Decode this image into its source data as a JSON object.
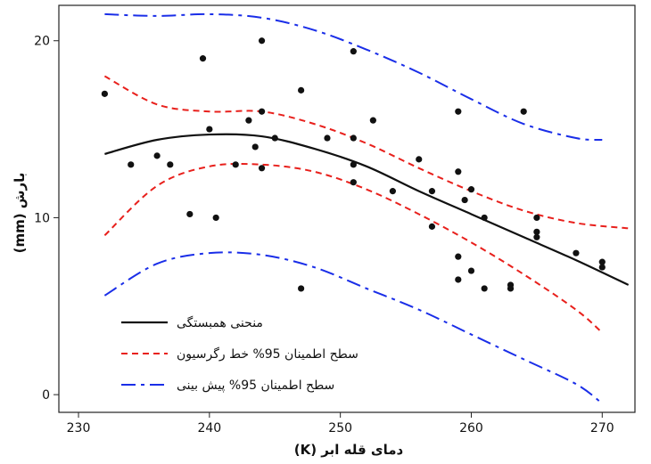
{
  "chart_data": {
    "type": "scatter",
    "xlabel": "دمای قله ابر (K)",
    "ylabel": "بارش (mm)",
    "xlim": [
      228.5,
      272.5
    ],
    "ylim": [
      -1.0,
      22.0
    ],
    "xticks": [
      230,
      240,
      250,
      260,
      270
    ],
    "yticks": [
      0,
      10,
      20
    ],
    "grid": false,
    "legend_position": "bottom-left",
    "points": [
      [
        232,
        17.0
      ],
      [
        234,
        13.0
      ],
      [
        236,
        13.5
      ],
      [
        237,
        13.0
      ],
      [
        238.5,
        10.2
      ],
      [
        239.5,
        19.0
      ],
      [
        240,
        15.0
      ],
      [
        240.5,
        10.0
      ],
      [
        242,
        13.0
      ],
      [
        243,
        15.5
      ],
      [
        243.5,
        14.0
      ],
      [
        244,
        20.0
      ],
      [
        244,
        16.0
      ],
      [
        244,
        12.8
      ],
      [
        245,
        14.5
      ],
      [
        247,
        17.2
      ],
      [
        247,
        6.0
      ],
      [
        249,
        14.5
      ],
      [
        251,
        19.4
      ],
      [
        251,
        14.5
      ],
      [
        251,
        13.0
      ],
      [
        251,
        12.0
      ],
      [
        252.5,
        15.5
      ],
      [
        254,
        11.5
      ],
      [
        256,
        13.3
      ],
      [
        257,
        11.5
      ],
      [
        257,
        9.5
      ],
      [
        259,
        16.0
      ],
      [
        259,
        12.6
      ],
      [
        259,
        7.8
      ],
      [
        259,
        6.5
      ],
      [
        259.5,
        11.0
      ],
      [
        260,
        11.6
      ],
      [
        260,
        7.0
      ],
      [
        261,
        10.0
      ],
      [
        261,
        6.0
      ],
      [
        263,
        6.2
      ],
      [
        263,
        6.0
      ],
      [
        264,
        16.0
      ],
      [
        265,
        10.0
      ],
      [
        265,
        9.2
      ],
      [
        265,
        8.9
      ],
      [
        268,
        8.0
      ],
      [
        270,
        7.5
      ],
      [
        270,
        7.2
      ]
    ],
    "series": [
      {
        "name": "منحنی همبستگی",
        "style": "solid",
        "color": "#111111",
        "x": [
          232,
          236,
          240,
          244,
          248,
          252,
          256,
          260,
          264,
          268,
          272
        ],
        "y": [
          13.6,
          14.4,
          14.7,
          14.6,
          13.9,
          12.9,
          11.5,
          10.2,
          8.9,
          7.6,
          6.2
        ]
      },
      {
        "name": "سطح اطمینان 95% خط رگرسیون",
        "style": "dashed",
        "color": "#e8201c",
        "x": [
          232,
          236,
          240,
          244,
          248,
          252,
          256,
          260,
          264,
          268,
          272
        ],
        "y": [
          18.0,
          16.4,
          16.0,
          16.0,
          15.3,
          14.2,
          12.8,
          11.5,
          10.4,
          9.7,
          9.4
        ]
      },
      {
        "name": "",
        "style": "dashed",
        "color": "#e8201c",
        "x": [
          232,
          236,
          240,
          244,
          248,
          252,
          256,
          260,
          264,
          268,
          270
        ],
        "y": [
          9.0,
          11.8,
          12.9,
          13.0,
          12.6,
          11.6,
          10.2,
          8.6,
          6.8,
          4.8,
          3.5
        ]
      },
      {
        "name": "سطح اطمینان 95% پیش بینی",
        "style": "dashdot",
        "color": "#1a2ee8",
        "x": [
          232,
          236,
          240,
          244,
          248,
          252,
          256,
          260,
          264,
          268,
          270
        ],
        "y": [
          21.5,
          21.4,
          21.5,
          21.3,
          20.6,
          19.5,
          18.2,
          16.7,
          15.3,
          14.5,
          14.4
        ]
      },
      {
        "name": "",
        "style": "dashdot",
        "color": "#1a2ee8",
        "x": [
          232,
          236,
          240,
          244,
          248,
          252,
          256,
          260,
          264,
          268,
          270
        ],
        "y": [
          5.6,
          7.4,
          8.0,
          7.9,
          7.2,
          6.0,
          4.8,
          3.4,
          2.0,
          0.6,
          -0.5
        ]
      }
    ]
  }
}
